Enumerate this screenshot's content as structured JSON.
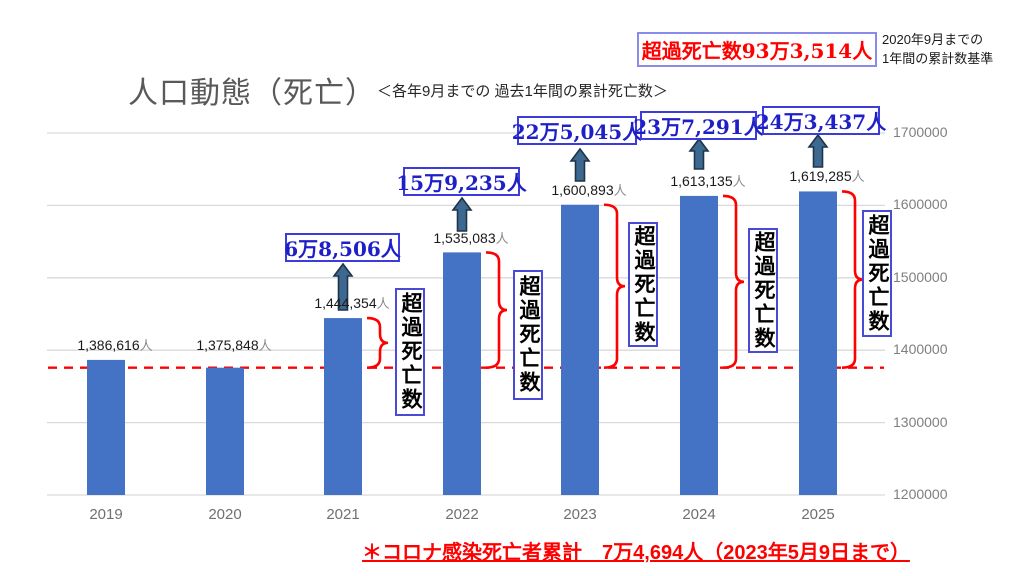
{
  "title": "人口動態（死亡）",
  "subtitle": "＜各年9月までの 過去1年間の累計死亡数＞",
  "header": {
    "total_excess_label": "超過死亡数93万3,514人",
    "baseline_note_line1": "2020年9月までの",
    "baseline_note_line2": "1年間の累計数基準"
  },
  "footnote": "＊コロナ感染死亡者累計　7万4,694人（2023年5月9日まで）",
  "chart_data": {
    "type": "bar",
    "title": "人口動態（死亡）",
    "subtitle": "＜各年9月までの 過去1年間の累計死亡数＞",
    "categories": [
      "2019",
      "2020",
      "2021",
      "2022",
      "2023",
      "2024",
      "2025"
    ],
    "values": [
      1386616,
      1375848,
      1444354,
      1535083,
      1600893,
      1613135,
      1619285
    ],
    "bar_value_labels": [
      "1,386,616",
      "1,375,848",
      "1,444,354",
      "1,535,083",
      "1,600,893",
      "1,613,135",
      "1,619,285"
    ],
    "value_suffix": "人",
    "excess_callouts": [
      "",
      "",
      "6万8,506人",
      "15万9,235人",
      "22万5,045人",
      "23万7,291人",
      "24万3,437人"
    ],
    "excess_brace_label": "超過死亡数",
    "total_excess_label": "超過死亡数93万3,514人",
    "baseline_value": 1375848,
    "baseline_note": "2020年9月までの1年間の累計数基準",
    "ylim": [
      1200000,
      1700000
    ],
    "yticks": [
      1200000,
      1300000,
      1400000,
      1500000,
      1600000,
      1700000
    ],
    "ytick_labels": [
      "1200000",
      "1300000",
      "1400000",
      "1500000",
      "1600000",
      "1700000"
    ],
    "grid": "horizontal",
    "legend": "none",
    "xlabel": "",
    "ylabel": "",
    "colors": {
      "bar": "#4472C4",
      "grid": "#d9d9d9",
      "baseline_dash": "#ff0000",
      "brace": "#ff0000",
      "arrow_fill": "#3d688f",
      "arrow_stroke": "#1e3449",
      "callout_text": "#1f1fc8",
      "callout_border": "#3c3cdc",
      "red_text": "#ff0000",
      "title_text": "#595959",
      "axis_text": "#7f7f7f"
    }
  }
}
